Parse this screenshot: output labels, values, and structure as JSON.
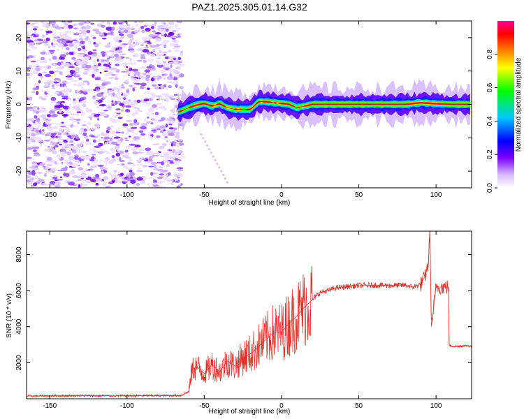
{
  "chart_data": [
    {
      "type": "heatmap",
      "title": "PAZ1.2025.305.01.14.G32",
      "xlabel": "Height of straight line (km)",
      "ylabel": "Frequency (Hz)",
      "xlim": [
        -165,
        123
      ],
      "ylim": [
        -25,
        25
      ],
      "xticks": [
        -150,
        -100,
        -50,
        0,
        50,
        100
      ],
      "yticks": [
        -20,
        -10,
        0,
        10,
        20
      ],
      "noise_region_x": [
        -165,
        -68
      ],
      "ridge": {
        "description_points_x": [
          -68,
          -65,
          -60,
          -55,
          -50,
          -45,
          -40,
          -35,
          -30,
          -25,
          -20,
          -15,
          -10,
          -5,
          0,
          5,
          10,
          15,
          20,
          30,
          40,
          50,
          60,
          70,
          80,
          90,
          100,
          110,
          123
        ],
        "description_points_y": [
          -2.5,
          -2.0,
          -1.0,
          -0.2,
          0.3,
          -0.5,
          0.2,
          -1.0,
          -1.5,
          -1.5,
          -1.5,
          0.8,
          0.8,
          0.5,
          0.3,
          0.0,
          -1.0,
          -0.5,
          0.0,
          0.0,
          0.0,
          0.0,
          0.0,
          0.0,
          0.0,
          0.5,
          0.2,
          0.0,
          0.0
        ]
      },
      "colorbar": {
        "label": "Normalized spectral amplitude",
        "range": [
          0,
          1
        ],
        "ticks": [
          0.0,
          0.2,
          0.4,
          0.6,
          0.8
        ],
        "tick_labels": [
          "0.0",
          "0.2",
          "0.4",
          "0.6",
          "0.8"
        ],
        "colors": [
          "#ffffff",
          "#6a00ff",
          "#0000ff",
          "#00c8ff",
          "#00ff00",
          "#ffff00",
          "#ff8000",
          "#ff0000",
          "#ff0080"
        ]
      }
    },
    {
      "type": "line",
      "title": "",
      "xlabel": "Height of straight line (km)",
      "ylabel": "SNR (10 * v/v)",
      "xlim": [
        -165,
        123
      ],
      "ylim": [
        0,
        9300
      ],
      "xticks": [
        -150,
        -100,
        -50,
        0,
        50,
        100
      ],
      "yticks": [
        2000,
        4000,
        6000,
        8000
      ],
      "color": "#e8302a",
      "series": [
        {
          "name": "SNR",
          "x": [
            -165,
            -150,
            -130,
            -110,
            -90,
            -75,
            -65,
            -60,
            -58,
            -55,
            -50,
            -45,
            -40,
            -35,
            -30,
            -25,
            -20,
            -15,
            -10,
            -5,
            0,
            5,
            10,
            15,
            20,
            25,
            30,
            35,
            40,
            50,
            60,
            70,
            80,
            85,
            90,
            93,
            95,
            96,
            97,
            100,
            105,
            108,
            108.5,
            112,
            120,
            123
          ],
          "values": [
            150,
            160,
            170,
            160,
            170,
            170,
            180,
            400,
            1600,
            1800,
            1400,
            1900,
            1500,
            2100,
            1800,
            2300,
            2500,
            2900,
            3300,
            3700,
            3700,
            4200,
            4600,
            5100,
            5500,
            5900,
            6000,
            6150,
            6200,
            6280,
            6300,
            6280,
            6300,
            6200,
            6350,
            6800,
            7500,
            9300,
            4000,
            6200,
            6200,
            6200,
            2950,
            2900,
            2950,
            2900
          ]
        }
      ]
    }
  ]
}
